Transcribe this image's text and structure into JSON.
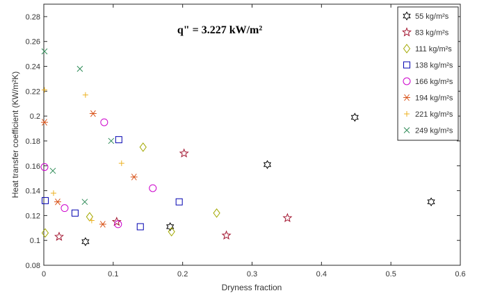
{
  "chart_data": {
    "type": "scatter",
    "title": "q\" = 3.227 kW/m²",
    "xlabel": "Dryness fraction",
    "ylabel": "Heat transfer coefficient (KW/m²K)",
    "xlim": [
      0,
      0.6
    ],
    "ylim": [
      0.08,
      0.29
    ],
    "x_ticks": [
      "0",
      "0.1",
      "0.2",
      "0.3",
      "0.4",
      "0.5",
      "0.6"
    ],
    "y_ticks": [
      "0.08",
      "0.1",
      "0.12",
      "0.14",
      "0.16",
      "0.18",
      "0.2",
      "0.22",
      "0.24",
      "0.26",
      "0.28"
    ],
    "x_tick_values": [
      0,
      0.1,
      0.2,
      0.3,
      0.4,
      0.5,
      0.6
    ],
    "y_tick_values": [
      0.08,
      0.1,
      0.12,
      0.14,
      0.16,
      0.18,
      0.2,
      0.22,
      0.24,
      0.26,
      0.28
    ],
    "grid": false,
    "legend_position": "top-right",
    "series": [
      {
        "name": "55 kg/m²s",
        "marker": "hexagram",
        "color": "#000000",
        "points": [
          [
            0.06,
            0.099
          ],
          [
            0.182,
            0.111
          ],
          [
            0.322,
            0.161
          ],
          [
            0.448,
            0.199
          ],
          [
            0.558,
            0.131
          ]
        ]
      },
      {
        "name": "83 kg/m²s",
        "marker": "pentagram",
        "color": "#a2142f",
        "points": [
          [
            0.022,
            0.103
          ],
          [
            0.105,
            0.115
          ],
          [
            0.202,
            0.17
          ],
          [
            0.263,
            0.104
          ],
          [
            0.351,
            0.118
          ]
        ]
      },
      {
        "name": "111 kg/m²s",
        "marker": "diamond",
        "color": "#a2a800",
        "points": [
          [
            0.002,
            0.106
          ],
          [
            0.066,
            0.119
          ],
          [
            0.143,
            0.175
          ],
          [
            0.184,
            0.107
          ],
          [
            0.249,
            0.122
          ]
        ]
      },
      {
        "name": "138 kg/m²s",
        "marker": "square",
        "color": "#0000b0",
        "points": [
          [
            0.002,
            0.132
          ],
          [
            0.045,
            0.122
          ],
          [
            0.108,
            0.181
          ],
          [
            0.139,
            0.111
          ],
          [
            0.195,
            0.131
          ]
        ]
      },
      {
        "name": "166 kg/m²s",
        "marker": "circle",
        "color": "#cc00cc",
        "points": [
          [
            0.001,
            0.159
          ],
          [
            0.03,
            0.126
          ],
          [
            0.087,
            0.195
          ],
          [
            0.107,
            0.113
          ],
          [
            0.157,
            0.142
          ]
        ]
      },
      {
        "name": "194 kg/m²s",
        "marker": "asterisk",
        "color": "#d95319",
        "points": [
          [
            0.001,
            0.195
          ],
          [
            0.02,
            0.131
          ],
          [
            0.071,
            0.202
          ],
          [
            0.085,
            0.113
          ],
          [
            0.13,
            0.151
          ]
        ]
      },
      {
        "name": "221 kg/m²s",
        "marker": "plus",
        "color": "#edb120",
        "points": [
          [
            0.001,
            0.221
          ],
          [
            0.014,
            0.138
          ],
          [
            0.06,
            0.217
          ],
          [
            0.069,
            0.116
          ],
          [
            0.112,
            0.162
          ]
        ]
      },
      {
        "name": "249 kg/m²s",
        "marker": "x",
        "color": "#2e8b57",
        "points": [
          [
            0.001,
            0.252
          ],
          [
            0.013,
            0.156
          ],
          [
            0.052,
            0.238
          ],
          [
            0.059,
            0.131
          ],
          [
            0.097,
            0.18
          ]
        ]
      }
    ]
  }
}
